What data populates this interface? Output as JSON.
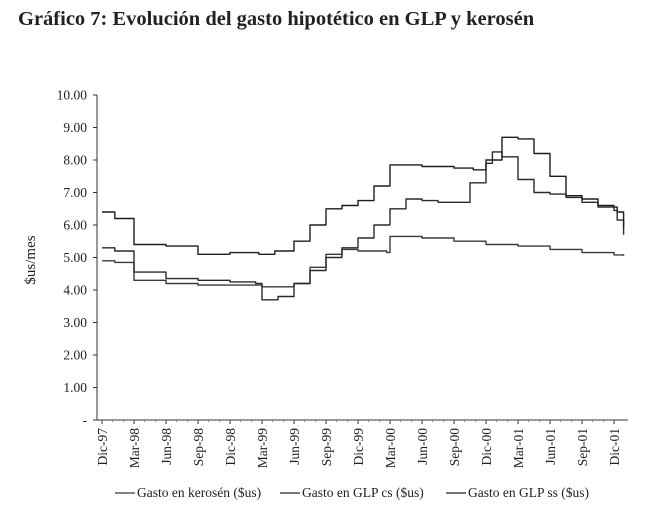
{
  "title": "Gráfico 7: Evolución del gasto hipotético en GLP y kerosén",
  "chart_data": {
    "type": "line",
    "title": "Gráfico 7: Evolución del gasto hipotético en GLP y kerosén",
    "xlabel": "",
    "ylabel": "$us/mes",
    "ylim": [
      0,
      10
    ],
    "yticks": [
      "-",
      "1.00",
      "2.00",
      "3.00",
      "4.00",
      "5.00",
      "6.00",
      "7.00",
      "8.00",
      "9.00",
      "10.00"
    ],
    "categories": [
      "Dic-97",
      "Mar-98",
      "Jun-98",
      "Sep-98",
      "Dic-98",
      "Mar-99",
      "Jun-99",
      "Sep-99",
      "Dic-99",
      "Mar-00",
      "Jun-00",
      "Sep-00",
      "Dic-00",
      "Mar-01",
      "Jun-01",
      "Sep-01",
      "Dic-01"
    ],
    "grid": false,
    "legend_position": "bottom",
    "series": [
      {
        "name": "Gasto en kerosén ($us)",
        "x": [
          0,
          0.4,
          1,
          2,
          3,
          4,
          5,
          5.4,
          6,
          6.5,
          7,
          7.5,
          8,
          8.5,
          8.9,
          9,
          10,
          11,
          12,
          13,
          14,
          15,
          16,
          16.3
        ],
        "y": [
          4.9,
          4.85,
          4.3,
          4.2,
          4.15,
          4.15,
          4.1,
          4.1,
          4.2,
          4.7,
          5.1,
          5.25,
          5.2,
          5.2,
          5.15,
          5.65,
          5.6,
          5.5,
          5.4,
          5.35,
          5.25,
          5.15,
          5.08,
          5.05
        ]
      },
      {
        "name": "Gasto en GLP cs ($us)",
        "x": [
          0,
          0.4,
          1,
          2,
          3,
          4,
          4.8,
          5,
          5.5,
          6,
          6.5,
          7,
          7.5,
          8,
          8.5,
          9,
          9.5,
          10,
          10.5,
          11,
          11.5,
          12,
          12.2,
          12.5,
          13,
          13.5,
          14,
          14.5,
          15,
          15.5,
          16,
          16.1,
          16.3
        ],
        "y": [
          5.3,
          5.2,
          4.55,
          4.35,
          4.3,
          4.25,
          4.2,
          3.7,
          3.8,
          4.2,
          4.6,
          5.0,
          5.3,
          5.6,
          6.0,
          6.5,
          6.8,
          6.75,
          6.7,
          6.7,
          7.3,
          7.9,
          8.25,
          8.1,
          7.4,
          7.0,
          6.95,
          6.85,
          6.7,
          6.55,
          6.45,
          6.15,
          5.7
        ]
      },
      {
        "name": "Gasto en GLP ss ($us)",
        "x": [
          0,
          0.4,
          1,
          2,
          3,
          4,
          4.9,
          5.4,
          6,
          6.5,
          7,
          7.5,
          8,
          8.5,
          9,
          10,
          11,
          11.6,
          12,
          12.5,
          13,
          13.5,
          14,
          14.5,
          15,
          15.5,
          16,
          16.1,
          16.3
        ],
        "y": [
          6.4,
          6.2,
          5.4,
          5.35,
          5.1,
          5.15,
          5.1,
          5.2,
          5.5,
          6.0,
          6.5,
          6.6,
          6.75,
          7.2,
          7.85,
          7.8,
          7.75,
          7.7,
          8.0,
          8.7,
          8.65,
          8.2,
          7.5,
          6.9,
          6.8,
          6.6,
          6.55,
          6.4,
          5.95
        ]
      }
    ]
  }
}
